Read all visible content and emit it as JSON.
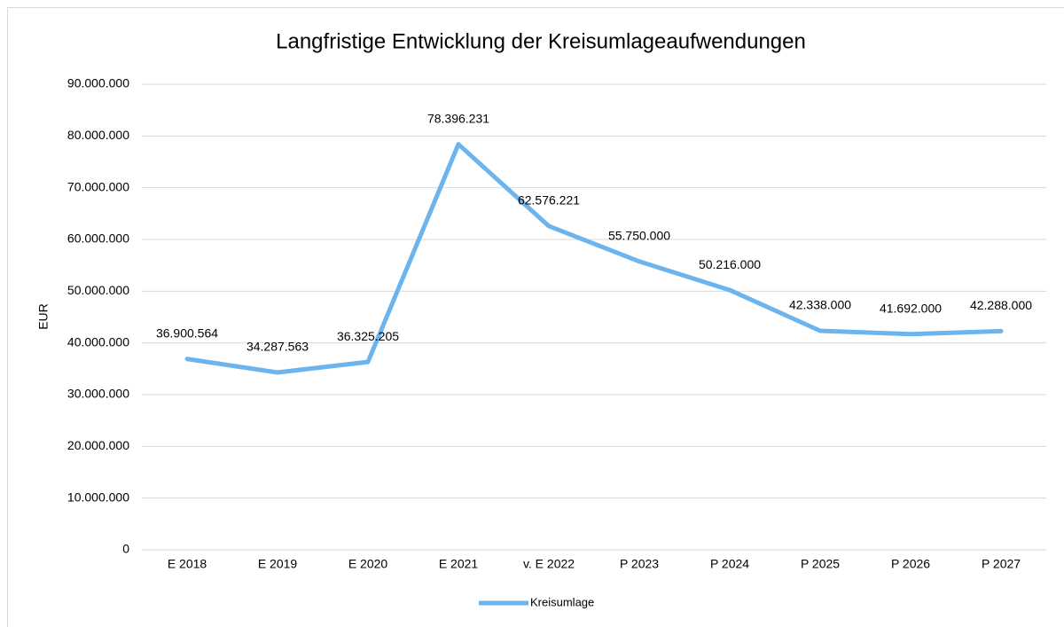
{
  "chart_data": {
    "type": "line",
    "title": "Langfristige Entwicklung der Kreisumlageaufwendungen",
    "y_label": "EUR",
    "categories": [
      "E 2018",
      "E 2019",
      "E 2020",
      "E 2021",
      "v. E 2022",
      "P 2023",
      "P 2024",
      "P 2025",
      "P 2026",
      "P 2027"
    ],
    "series": [
      {
        "name": "Kreisumlage",
        "color": "#6cb4ee",
        "values": [
          36900564,
          34287563,
          36325205,
          78396231,
          62576221,
          55750000,
          50216000,
          42338000,
          41692000,
          42288000
        ],
        "value_labels": [
          "36.900.564",
          "34.287.563",
          "36.325.205",
          "78.396.231",
          "62.576.221",
          "55.750.000",
          "50.216.000",
          "42.338.000",
          "41.692.000",
          "42.288.000"
        ]
      }
    ],
    "ylim": [
      0,
      90000000
    ],
    "yticks": [
      0,
      {
        "value": 10000000,
        "label": "10.000.000"
      },
      {
        "value": 20000000,
        "label": "20.000.000"
      },
      {
        "value": 30000000,
        "label": "30.000.000"
      },
      {
        "value": 40000000,
        "label": "40.000.000"
      },
      {
        "value": 50000000,
        "label": "50.000.000"
      },
      {
        "value": 60000000,
        "label": "60.000.000"
      },
      {
        "value": 70000000,
        "label": "70.000.000"
      },
      {
        "value": 80000000,
        "label": "80.000.000"
      },
      {
        "value": 90000000,
        "label": "90.000.000"
      }
    ],
    "grid": true,
    "legend": "bottom"
  }
}
